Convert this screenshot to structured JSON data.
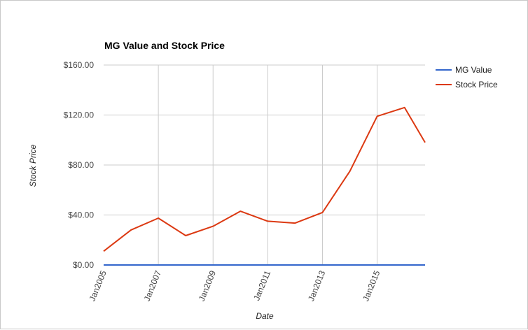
{
  "chart_data": {
    "type": "line",
    "title": "MG Value and Stock Price",
    "xlabel": "Date",
    "ylabel": "Stock Price",
    "x": [
      "2005-01",
      "2006-01",
      "2007-01",
      "2008-01",
      "2009-01",
      "2010-01",
      "2011-01",
      "2012-01",
      "2013-01",
      "2014-01",
      "2015-01",
      "2016-01",
      "2016-10"
    ],
    "x_tick_labels": [
      "Jan2005",
      "Jan2007",
      "Jan2009",
      "Jan2011",
      "Jan2013",
      "Jan2015"
    ],
    "y_tick_labels": [
      "$0.00",
      "$40.00",
      "$80.00",
      "$120.00",
      "$160.00"
    ],
    "ylim": [
      0,
      160
    ],
    "grid": true,
    "legend_position": "right",
    "series": [
      {
        "name": "MG Value",
        "color": "#3366cc",
        "values": [
          0,
          0,
          0,
          0,
          0,
          0,
          0,
          0,
          0,
          0,
          0,
          0,
          0
        ]
      },
      {
        "name": "Stock Price",
        "color": "#dc3912",
        "values": [
          11,
          28,
          37.5,
          23.5,
          31,
          43,
          35,
          33.5,
          42,
          75,
          119,
          126,
          98
        ]
      }
    ]
  }
}
